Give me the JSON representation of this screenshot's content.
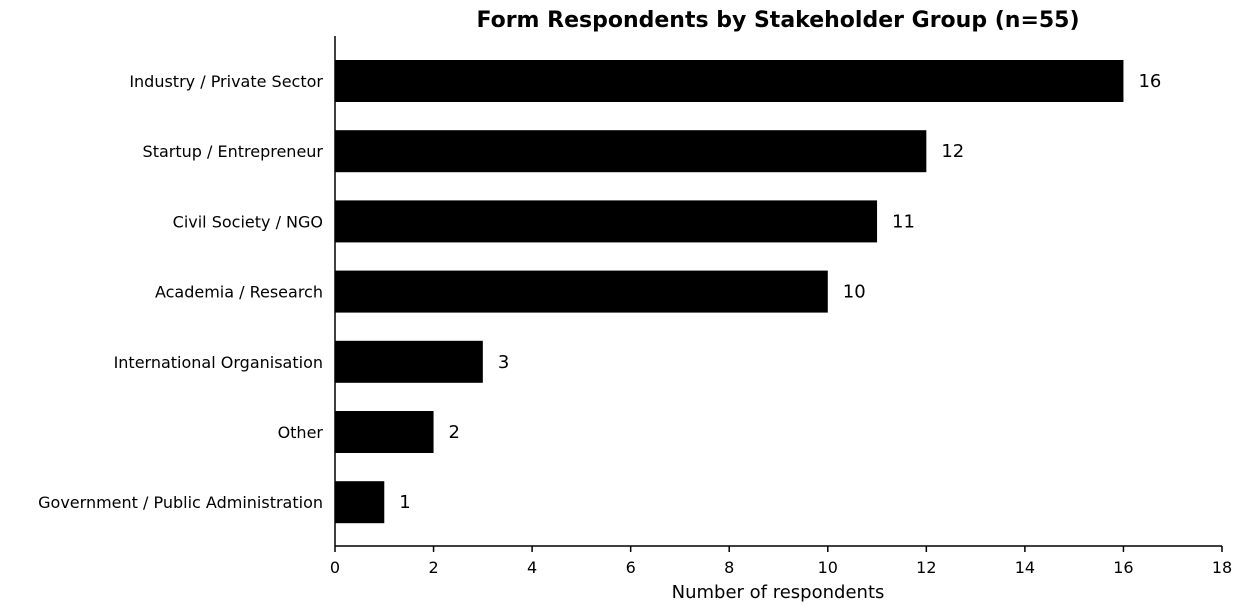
{
  "chart_data": {
    "type": "bar",
    "orientation": "horizontal",
    "title": "Form Respondents by Stakeholder Group (n=55)",
    "xlabel": "Number of respondents",
    "ylabel": "",
    "categories": [
      "Industry / Private Sector",
      "Startup / Entrepreneur",
      "Civil Society / NGO",
      "Academia / Research",
      "International Organisation",
      "Other",
      "Government / Public Administration"
    ],
    "values": [
      16,
      12,
      11,
      10,
      3,
      2,
      1
    ],
    "data_labels": [
      "16",
      "12",
      "11",
      "10",
      "3",
      "2",
      "1"
    ],
    "xlim": [
      0,
      18
    ],
    "xticks": [
      0,
      2,
      4,
      6,
      8,
      10,
      12,
      14,
      16,
      18
    ],
    "grid": false,
    "legend": "none",
    "bar_color": "#000000"
  }
}
